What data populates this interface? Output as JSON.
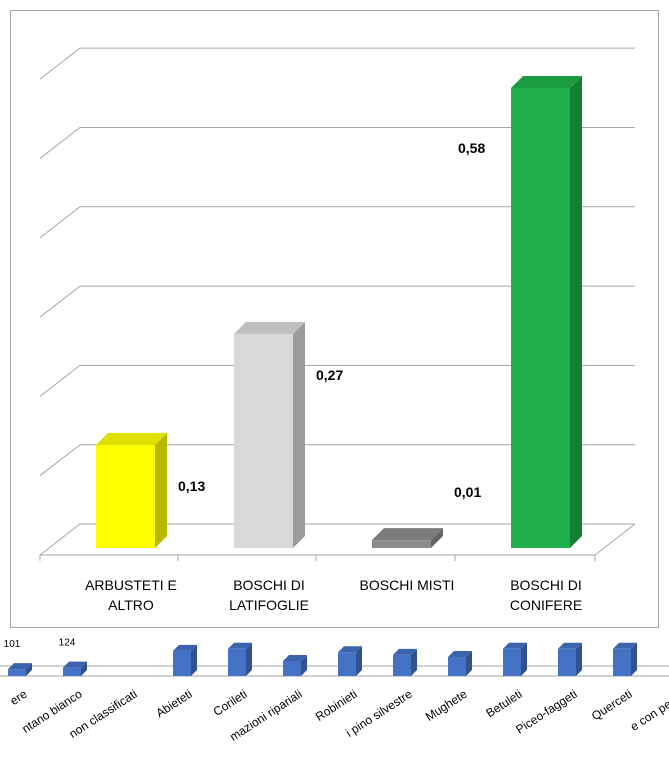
{
  "chart_data": [
    {
      "type": "bar3d",
      "categories": [
        "ARBUSTETI E ALTRO",
        "BOSCHI DI LATIFOGLIE",
        "BOSCHI MISTI",
        "BOSCHI DI CONIFERE"
      ],
      "values": [
        0.13,
        0.27,
        0.01,
        0.58
      ],
      "value_labels": [
        "0,13",
        "0,27",
        "0,01",
        "0,58"
      ],
      "colors": [
        "#ffff00",
        "#d9d9d9",
        "#8c8c8c",
        "#1fb04b"
      ],
      "ylim": [
        0,
        0.6
      ],
      "yticks": [
        0,
        0.1,
        0.2,
        0.3,
        0.4,
        0.5,
        0.6
      ],
      "grid": true
    },
    {
      "type": "bar3d-strip",
      "categories": [
        "ere",
        "ntano bianco",
        "non classificati",
        "Abieteti",
        "Corileti",
        "mazioni ripariali",
        "Robinieti",
        "i pino silvestre",
        "Mughete",
        "Betuleti",
        "Piceo-faggeti",
        "Querceti",
        "e con pecce"
      ],
      "values": [
        101,
        124,
        null,
        370,
        400,
        220,
        350,
        310,
        280,
        400,
        400,
        400,
        null
      ],
      "value_labels": [
        "101",
        "124",
        null,
        null,
        null,
        null,
        null,
        null,
        null,
        null,
        null,
        null,
        null
      ],
      "color": "#4472c4"
    }
  ]
}
